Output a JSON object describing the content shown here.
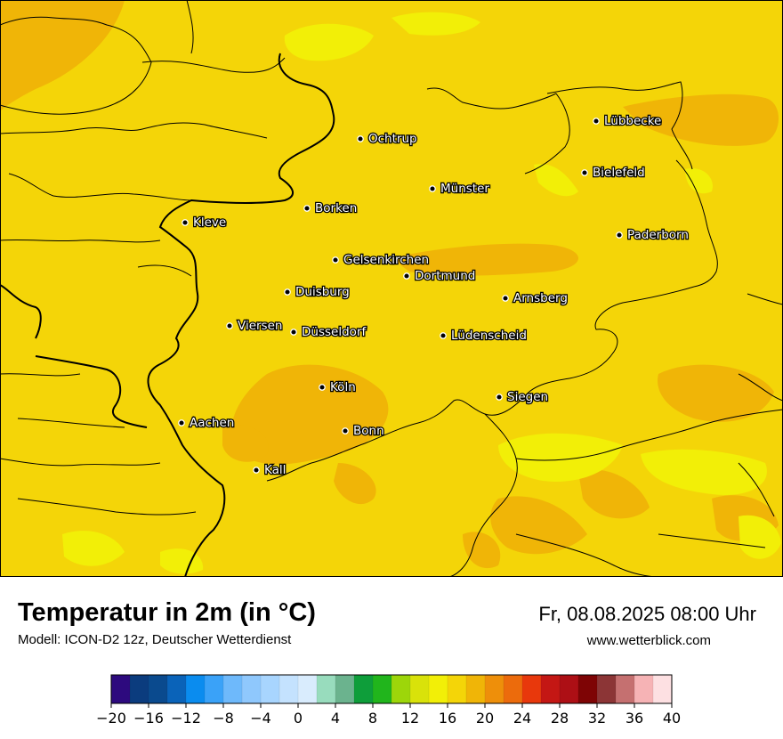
{
  "title": "Temperatur in 2m (in °C)",
  "subtitle": "Modell: ICON-D2 12z, Deutscher Wetterdienst",
  "datetime": "Fr, 08.08.2025 08:00 Uhr",
  "website": "www.wetterblick.com",
  "cities": [
    {
      "name": "Lübbecke",
      "label": "Lübbecke"
    },
    {
      "name": "Ochtrup",
      "label": "Ochtrup"
    },
    {
      "name": "Bielefeld",
      "label": "Bielefeld"
    },
    {
      "name": "Münster",
      "label": "Münster"
    },
    {
      "name": "Borken",
      "label": "Borken"
    },
    {
      "name": "Kleve",
      "label": "Kleve"
    },
    {
      "name": "Paderborn",
      "label": "Paderborn"
    },
    {
      "name": "Gelsenkirchen",
      "label": "Gelsenkirchen"
    },
    {
      "name": "Dortmund",
      "label": "Dortmund"
    },
    {
      "name": "Duisburg",
      "label": "Duisburg"
    },
    {
      "name": "Arnsberg",
      "label": "Arnsberg"
    },
    {
      "name": "Viersen",
      "label": "Viersen"
    },
    {
      "name": "Düsseldorf",
      "label": "Düsseldorf"
    },
    {
      "name": "Lüdenscheid",
      "label": "Lüdenscheid"
    },
    {
      "name": "Köln",
      "label": "Köln"
    },
    {
      "name": "Siegen",
      "label": "Siegen"
    },
    {
      "name": "Aachen",
      "label": "Aachen"
    },
    {
      "name": "Bonn",
      "label": "Bonn"
    },
    {
      "name": "Kall",
      "label": "Kall"
    }
  ],
  "legend": {
    "colors": [
      "#2d0a7e",
      "#0b3c7e",
      "#0a4a8e",
      "#0a63b9",
      "#0a8cef",
      "#3aa2f8",
      "#6eb9fb",
      "#8fc8fd",
      "#a8d5fe",
      "#c4e2fe",
      "#d9ecfd",
      "#98dcbd",
      "#6bb38e",
      "#0e9e3a",
      "#21b51c",
      "#9dd60a",
      "#d9e20a",
      "#f2ef07",
      "#f4d508",
      "#f0b507",
      "#ee8f0a",
      "#ec6b0c",
      "#e8380c",
      "#c41714",
      "#ad0f15",
      "#7e0405",
      "#8c3536",
      "#c57070",
      "#f6b3b5",
      "#fde0e2"
    ],
    "ticks": [
      "−20",
      "−16",
      "−12",
      "−8",
      "−4",
      "0",
      "4",
      "8",
      "12",
      "16",
      "20",
      "24",
      "28",
      "32",
      "36",
      "40"
    ]
  }
}
